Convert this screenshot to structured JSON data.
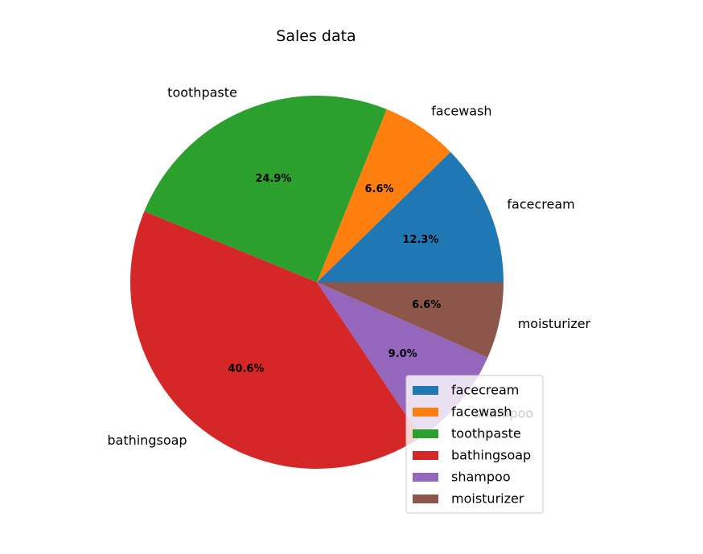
{
  "chart_data": {
    "type": "pie",
    "title": "Sales data",
    "categories": [
      "facecream",
      "facewash",
      "toothpaste",
      "bathingsoap",
      "shampoo",
      "moisturizer"
    ],
    "values": [
      12.3,
      6.6,
      24.9,
      40.6,
      9.0,
      6.6
    ],
    "percent_labels": [
      "12.3%",
      "6.6%",
      "24.9%",
      "40.6%",
      "9.0%",
      "6.6%"
    ],
    "colors": [
      "#1f77b4",
      "#ff7f0e",
      "#2ca02c",
      "#d62728",
      "#9467bd",
      "#8c564b"
    ],
    "start_angle_deg": 0,
    "direction": "counterclockwise",
    "legend": {
      "placement": "lower-right",
      "entries": [
        "facecream",
        "facewash",
        "toothpaste",
        "bathingsoap",
        "shampoo",
        "moisturizer"
      ]
    }
  }
}
